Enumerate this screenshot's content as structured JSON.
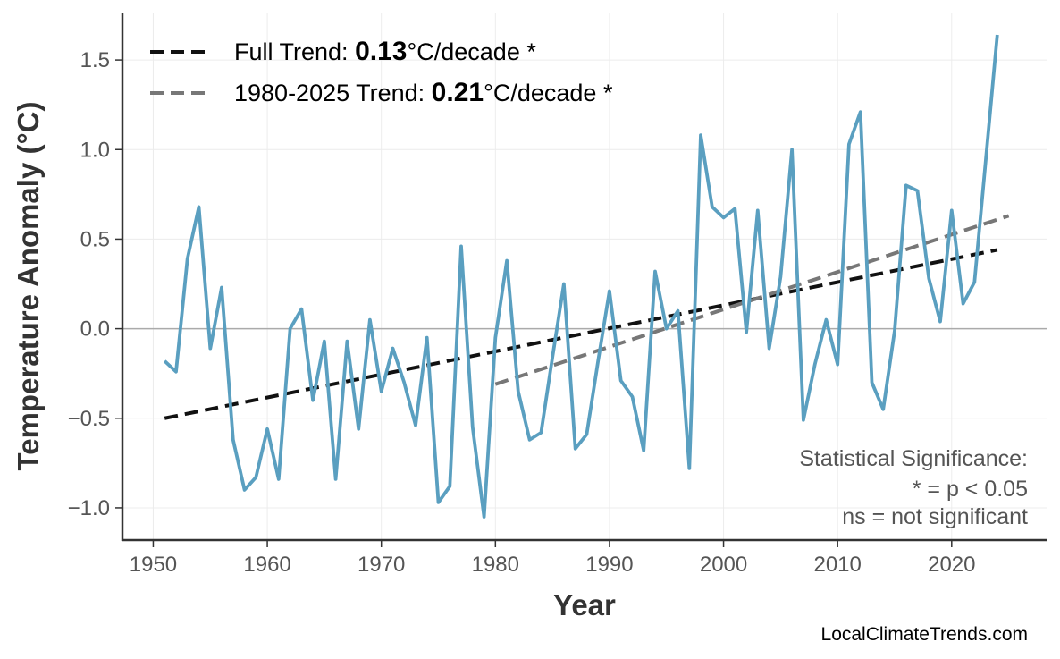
{
  "chart_data": {
    "type": "line",
    "xlabel": "Year",
    "ylabel": "Temperature Anomaly (°C)",
    "xlim": [
      1947.3,
      2028.4
    ],
    "ylim": [
      -1.18,
      1.76
    ],
    "x_ticks": [
      1950,
      1960,
      1970,
      1980,
      1990,
      2000,
      2010,
      2020
    ],
    "x_tick_labels": [
      "1950",
      "1960",
      "1970",
      "1980",
      "1990",
      "2000",
      "2010",
      "2020"
    ],
    "y_ticks": [
      -1.0,
      -0.5,
      0.0,
      0.5,
      1.0,
      1.5
    ],
    "y_tick_labels": [
      "−1.0",
      "−0.5",
      "0.0",
      "0.5",
      "1.0",
      "1.5"
    ],
    "grid": true,
    "zero_line": true,
    "series": [
      {
        "color": "#5a9fc0",
        "points": [
          [
            1951,
            -0.18
          ],
          [
            1952,
            -0.24
          ],
          [
            1953,
            0.39
          ],
          [
            1954,
            0.68
          ],
          [
            1955,
            -0.11
          ],
          [
            1956,
            0.23
          ],
          [
            1957,
            -0.62
          ],
          [
            1958,
            -0.9
          ],
          [
            1959,
            -0.83
          ],
          [
            1960,
            -0.56
          ],
          [
            1961,
            -0.84
          ],
          [
            1962,
            0.0
          ],
          [
            1963,
            0.11
          ],
          [
            1964,
            -0.4
          ],
          [
            1965,
            -0.07
          ],
          [
            1966,
            -0.84
          ],
          [
            1967,
            -0.07
          ],
          [
            1968,
            -0.56
          ],
          [
            1969,
            0.05
          ],
          [
            1970,
            -0.35
          ],
          [
            1971,
            -0.11
          ],
          [
            1972,
            -0.3
          ],
          [
            1973,
            -0.54
          ],
          [
            1974,
            -0.05
          ],
          [
            1975,
            -0.97
          ],
          [
            1976,
            -0.88
          ],
          [
            1977,
            0.46
          ],
          [
            1978,
            -0.55
          ],
          [
            1979,
            -1.05
          ],
          [
            1980,
            -0.05
          ],
          [
            1981,
            0.38
          ],
          [
            1982,
            -0.35
          ],
          [
            1983,
            -0.62
          ],
          [
            1984,
            -0.58
          ],
          [
            1985,
            -0.16
          ],
          [
            1986,
            0.25
          ],
          [
            1987,
            -0.67
          ],
          [
            1988,
            -0.59
          ],
          [
            1989,
            -0.18
          ],
          [
            1990,
            0.21
          ],
          [
            1991,
            -0.29
          ],
          [
            1992,
            -0.38
          ],
          [
            1993,
            -0.68
          ],
          [
            1994,
            0.32
          ],
          [
            1995,
            0.0
          ],
          [
            1996,
            0.1
          ],
          [
            1997,
            -0.78
          ],
          [
            1998,
            1.08
          ],
          [
            1999,
            0.68
          ],
          [
            2000,
            0.62
          ],
          [
            2001,
            0.67
          ],
          [
            2002,
            -0.02
          ],
          [
            2003,
            0.66
          ],
          [
            2004,
            -0.11
          ],
          [
            2005,
            0.29
          ],
          [
            2006,
            1.0
          ],
          [
            2007,
            -0.51
          ],
          [
            2008,
            -0.2
          ],
          [
            2009,
            0.05
          ],
          [
            2010,
            -0.2
          ],
          [
            2011,
            1.03
          ],
          [
            2012,
            1.21
          ],
          [
            2013,
            -0.3
          ],
          [
            2014,
            -0.45
          ],
          [
            2015,
            -0.01
          ],
          [
            2016,
            0.8
          ],
          [
            2017,
            0.77
          ],
          [
            2018,
            0.28
          ],
          [
            2019,
            0.04
          ],
          [
            2020,
            0.66
          ],
          [
            2021,
            0.14
          ],
          [
            2022,
            0.26
          ],
          [
            2023,
            0.95
          ],
          [
            2024,
            1.64
          ]
        ]
      }
    ],
    "trend_lines": [
      {
        "name": "Full Trend",
        "color": "#111111",
        "from": [
          1951,
          -0.5
        ],
        "to": [
          2024,
          0.44
        ]
      },
      {
        "name": "1980-2025 Trend",
        "color": "#777777",
        "from": [
          1980,
          -0.31
        ],
        "to": [
          2025,
          0.63
        ]
      }
    ],
    "legend": {
      "placement": "top-left",
      "items": [
        {
          "prefix": "Full Trend: ",
          "value": "0.13",
          "suffix": "°C/decade *"
        },
        {
          "prefix": "1980-2025 Trend: ",
          "value": "0.21",
          "suffix": "°C/decade *"
        }
      ]
    },
    "annotation": [
      "Statistical Significance:",
      "* = p < 0.05",
      "ns = not significant"
    ],
    "watermark": "LocalClimateTrends.com"
  }
}
